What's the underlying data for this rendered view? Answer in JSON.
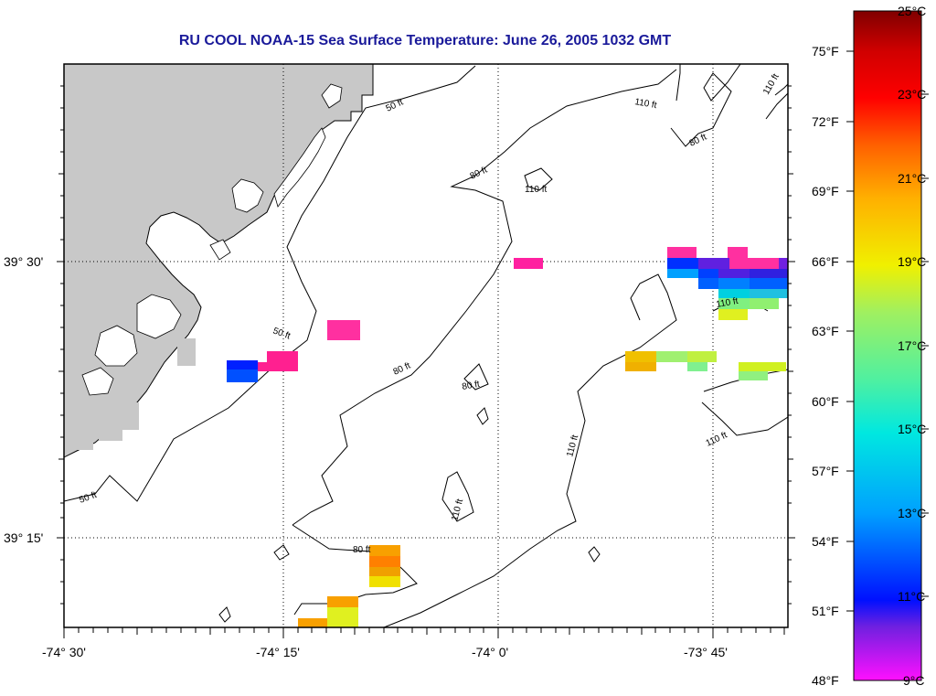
{
  "title": "RU COOL  NOAA-15  Sea Surface Temperature:  June 26, 2005 1032 GMT",
  "map": {
    "lon_ticks": [
      "-74° 30'",
      "-74° 15'",
      "-74° 0'",
      "-73° 45'"
    ],
    "lat_ticks": [
      "39° 30'",
      "39° 15'"
    ],
    "contour_labels": [
      "50 ft",
      "50 ft",
      "50 ft",
      "80 ft",
      "80 ft",
      "80 ft",
      "80 ft",
      "80 ft",
      "110 ft",
      "110 ft",
      "110 ft",
      "110 ft",
      "110 ft",
      "110 ft",
      "110 ft"
    ],
    "land_color": "#c8c8c8"
  },
  "colorbar": {
    "celsius": [
      "25°C",
      "23°C",
      "21°C",
      "19°C",
      "17°C",
      "15°C",
      "13°C",
      "11°C",
      "9°C"
    ],
    "fahrenheit": [
      "75°F",
      "72°F",
      "69°F",
      "66°F",
      "63°F",
      "60°F",
      "57°F",
      "54°F",
      "51°F",
      "48°F"
    ],
    "stops": [
      "#ff10ff",
      "#7020e0",
      "#0010ff",
      "#00a0ff",
      "#00e8e0",
      "#50f0a0",
      "#a0f060",
      "#f0f000",
      "#ffb000",
      "#ff6000",
      "#ff0000",
      "#d00000",
      "#800000"
    ]
  }
}
